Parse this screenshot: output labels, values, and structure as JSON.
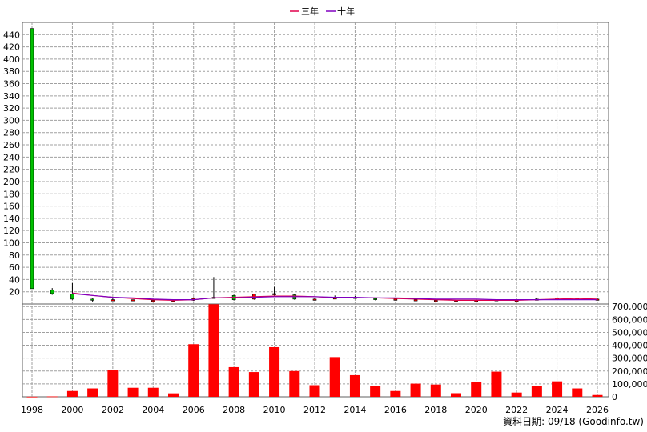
{
  "legend": [
    {
      "label": "三年",
      "color": "#e0004a"
    },
    {
      "label": "十年",
      "color": "#8000c0"
    }
  ],
  "footer": "資料日期: 09/18  (Goodinfo.tw)",
  "colors": {
    "up": "#ff0000",
    "down": "#00c000",
    "volume": "#ff0000",
    "grid": "#a0a0a0"
  },
  "chart_data": {
    "type": "candlestick+bar",
    "x_ticks": [
      1998,
      2000,
      2002,
      2004,
      2006,
      2008,
      2010,
      2012,
      2014,
      2016,
      2018,
      2020,
      2022,
      2024,
      2026
    ],
    "price_axis": {
      "ylim": [
        0,
        460
      ],
      "ticks": [
        20,
        40,
        60,
        80,
        100,
        120,
        140,
        160,
        180,
        200,
        220,
        240,
        260,
        280,
        300,
        320,
        340,
        360,
        380,
        400,
        420,
        440
      ]
    },
    "volume_axis": {
      "ylim": [
        0,
        720000
      ],
      "ticks": [
        0,
        100000,
        200000,
        300000,
        400000,
        500000,
        600000,
        700000
      ],
      "tick_labels": [
        "0",
        "100,000",
        "200,000",
        "300,000",
        "400,000",
        "500,000",
        "600,000",
        "700,000"
      ]
    },
    "candles": [
      {
        "year": 1998,
        "open": 450,
        "close": 25,
        "high": 450,
        "low": 25
      },
      {
        "year": 1999,
        "open": 23,
        "close": 17,
        "high": 26,
        "low": 15
      },
      {
        "year": 2000,
        "open": 16,
        "close": 8,
        "high": 34,
        "low": 7
      },
      {
        "year": 2001,
        "open": 8,
        "close": 7,
        "high": 9,
        "low": 4
      },
      {
        "year": 2002,
        "open": 7,
        "close": 7,
        "high": 9,
        "low": 6
      },
      {
        "year": 2003,
        "open": 7,
        "close": 7,
        "high": 7,
        "low": 6
      },
      {
        "year": 2004,
        "open": 6,
        "close": 6,
        "high": 7,
        "low": 5
      },
      {
        "year": 2005,
        "open": 5,
        "close": 5,
        "high": 5,
        "low": 4
      },
      {
        "year": 2006,
        "open": 6,
        "close": 9,
        "high": 11,
        "low": 5
      },
      {
        "year": 2007,
        "open": 10,
        "close": 11,
        "high": 44,
        "low": 9
      },
      {
        "year": 2008,
        "open": 14,
        "close": 7,
        "high": 15,
        "low": 6
      },
      {
        "year": 2009,
        "open": 8,
        "close": 16,
        "high": 17,
        "low": 7
      },
      {
        "year": 2010,
        "open": 15,
        "close": 17,
        "high": 28,
        "low": 14
      },
      {
        "year": 2011,
        "open": 15,
        "close": 8,
        "high": 17,
        "low": 7
      },
      {
        "year": 2012,
        "open": 8,
        "close": 8,
        "high": 10,
        "low": 7
      },
      {
        "year": 2013,
        "open": 9,
        "close": 10,
        "high": 14,
        "low": 8
      },
      {
        "year": 2014,
        "open": 10,
        "close": 11,
        "high": 13,
        "low": 9
      },
      {
        "year": 2015,
        "open": 9,
        "close": 8,
        "high": 10,
        "low": 6
      },
      {
        "year": 2016,
        "open": 8,
        "close": 8,
        "high": 9,
        "low": 7
      },
      {
        "year": 2017,
        "open": 7,
        "close": 7,
        "high": 8,
        "low": 6
      },
      {
        "year": 2018,
        "open": 6,
        "close": 6,
        "high": 7,
        "low": 5
      },
      {
        "year": 2019,
        "open": 5,
        "close": 5,
        "high": 6,
        "low": 5
      },
      {
        "year": 2020,
        "open": 5,
        "close": 6,
        "high": 7,
        "low": 5
      },
      {
        "year": 2021,
        "open": 6,
        "close": 7,
        "high": 7,
        "low": 6
      },
      {
        "year": 2022,
        "open": 6,
        "close": 6,
        "high": 6,
        "low": 5
      },
      {
        "year": 2023,
        "open": 7,
        "close": 8,
        "high": 9,
        "low": 6
      },
      {
        "year": 2024,
        "open": 9,
        "close": 10,
        "high": 12,
        "low": 8
      },
      {
        "year": 2025,
        "open": 8,
        "close": 9,
        "high": 9,
        "low": 7
      },
      {
        "year": 2026,
        "open": 8,
        "close": 8,
        "high": 9,
        "low": 7
      }
    ],
    "volume": [
      {
        "year": 1998,
        "value": 1000
      },
      {
        "year": 1999,
        "value": 3000
      },
      {
        "year": 2000,
        "value": 45000
      },
      {
        "year": 2001,
        "value": 65000
      },
      {
        "year": 2002,
        "value": 205000
      },
      {
        "year": 2003,
        "value": 70000
      },
      {
        "year": 2004,
        "value": 70000
      },
      {
        "year": 2005,
        "value": 27000
      },
      {
        "year": 2006,
        "value": 408000
      },
      {
        "year": 2007,
        "value": 718000
      },
      {
        "year": 2008,
        "value": 230000
      },
      {
        "year": 2009,
        "value": 192000
      },
      {
        "year": 2010,
        "value": 385000
      },
      {
        "year": 2011,
        "value": 200000
      },
      {
        "year": 2012,
        "value": 90000
      },
      {
        "year": 2013,
        "value": 308000
      },
      {
        "year": 2014,
        "value": 168000
      },
      {
        "year": 2015,
        "value": 82000
      },
      {
        "year": 2016,
        "value": 45000
      },
      {
        "year": 2017,
        "value": 102000
      },
      {
        "year": 2018,
        "value": 95000
      },
      {
        "year": 2019,
        "value": 28000
      },
      {
        "year": 2020,
        "value": 118000
      },
      {
        "year": 2021,
        "value": 195000
      },
      {
        "year": 2022,
        "value": 33000
      },
      {
        "year": 2023,
        "value": 85000
      },
      {
        "year": 2024,
        "value": 120000
      },
      {
        "year": 2025,
        "value": 65000
      },
      {
        "year": 2026,
        "value": 14000
      }
    ],
    "series": [
      {
        "name": "三年",
        "points": [
          [
            2000,
            18
          ],
          [
            2001,
            14
          ],
          [
            2002,
            11
          ],
          [
            2003,
            9
          ],
          [
            2004,
            7
          ],
          [
            2005,
            6
          ],
          [
            2006,
            7
          ],
          [
            2007,
            10
          ],
          [
            2008,
            11
          ],
          [
            2009,
            12
          ],
          [
            2010,
            13
          ],
          [
            2011,
            13
          ],
          [
            2012,
            12
          ],
          [
            2013,
            10
          ],
          [
            2014,
            10
          ],
          [
            2015,
            10
          ],
          [
            2016,
            9
          ],
          [
            2017,
            8
          ],
          [
            2018,
            7
          ],
          [
            2019,
            6
          ],
          [
            2020,
            6
          ],
          [
            2021,
            6
          ],
          [
            2022,
            6
          ],
          [
            2023,
            7
          ],
          [
            2024,
            8
          ],
          [
            2025,
            9
          ],
          [
            2026,
            8
          ]
        ]
      },
      {
        "name": "十年",
        "points": [
          [
            2000,
            17
          ],
          [
            2001,
            14
          ],
          [
            2002,
            11
          ],
          [
            2003,
            10
          ],
          [
            2004,
            8
          ],
          [
            2005,
            7
          ],
          [
            2006,
            7
          ],
          [
            2007,
            10
          ],
          [
            2008,
            10
          ],
          [
            2009,
            11
          ],
          [
            2010,
            12
          ],
          [
            2011,
            12
          ],
          [
            2012,
            12
          ],
          [
            2013,
            11
          ],
          [
            2014,
            11
          ],
          [
            2015,
            10
          ],
          [
            2016,
            10
          ],
          [
            2017,
            9
          ],
          [
            2018,
            8
          ],
          [
            2019,
            8
          ],
          [
            2020,
            8
          ],
          [
            2021,
            7
          ],
          [
            2022,
            7
          ],
          [
            2023,
            7
          ],
          [
            2024,
            7
          ],
          [
            2025,
            7
          ],
          [
            2026,
            7
          ]
        ]
      }
    ]
  }
}
